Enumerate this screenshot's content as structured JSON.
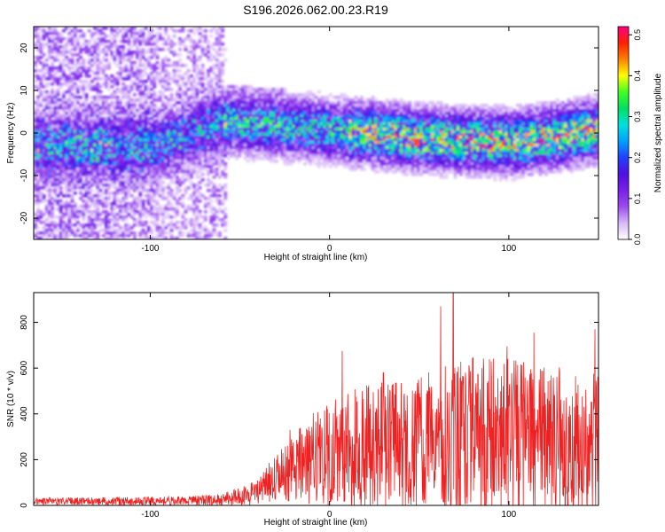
{
  "title": "S196.2026.062.00.23.R19",
  "colors": {
    "line": "#ee2222",
    "frame": "#000000",
    "colormap": [
      "#ffffff",
      "#d8b8f8",
      "#9a4cf0",
      "#7a20e8",
      "#5010e0",
      "#2040ff",
      "#00a0ff",
      "#00e0e0",
      "#00e060",
      "#40ff20",
      "#ffff00",
      "#ff8000",
      "#ff2000",
      "#ff0080"
    ]
  },
  "chart_data": [
    {
      "type": "heatmap",
      "title": "S196.2026.062.00.23.R19",
      "xlabel": "Height of straight line (km)",
      "ylabel": "Frequency (Hz)",
      "xlim": [
        -165,
        150
      ],
      "ylim": [
        -25,
        25
      ],
      "x_ticks": [
        -100,
        0,
        100
      ],
      "y_ticks": [
        -20,
        -10,
        0,
        10,
        20
      ],
      "colorbar": {
        "label": "Normalized spectral amplitude",
        "range": [
          0.0,
          0.52
        ],
        "ticks": [
          0.0,
          0.1,
          0.2,
          0.3,
          0.4,
          0.5
        ]
      },
      "band_center_hz": [
        {
          "x": -165,
          "hz": -3.0
        },
        {
          "x": -100,
          "hz": -3.0
        },
        {
          "x": -60,
          "hz": 3.0
        },
        {
          "x": -30,
          "hz": 2.0
        },
        {
          "x": 0,
          "hz": 1.0
        },
        {
          "x": 50,
          "hz": -1.0
        },
        {
          "x": 100,
          "hz": -2.0
        },
        {
          "x": 150,
          "hz": 1.0
        }
      ],
      "peak_amplitude": 0.52
    },
    {
      "type": "line",
      "xlabel": "Height of straight line (km)",
      "ylabel": "SNR (10 * v/v)",
      "xlim": [
        -165,
        150
      ],
      "ylim": [
        0,
        930
      ],
      "x_ticks": [
        -100,
        0,
        100
      ],
      "y_ticks": [
        0,
        200,
        400,
        600,
        800
      ],
      "envelope": {
        "x": [
          -165,
          -80,
          -60,
          -40,
          -30,
          -20,
          -10,
          0,
          10,
          20,
          40,
          60,
          80,
          100,
          120,
          150
        ],
        "mean": [
          18,
          20,
          25,
          60,
          120,
          170,
          200,
          220,
          240,
          250,
          260,
          280,
          300,
          300,
          290,
          300
        ],
        "amplitude": [
          15,
          20,
          25,
          60,
          110,
          150,
          200,
          230,
          270,
          280,
          300,
          330,
          350,
          340,
          320,
          330
        ]
      },
      "peaks": [
        {
          "x": -22,
          "y": 330
        },
        {
          "x": 7,
          "y": 675
        },
        {
          "x": 30,
          "y": 580
        },
        {
          "x": 62,
          "y": 870
        },
        {
          "x": 69,
          "y": 930
        },
        {
          "x": 99,
          "y": 695
        },
        {
          "x": 114,
          "y": 755
        },
        {
          "x": 148,
          "y": 770
        }
      ]
    }
  ]
}
